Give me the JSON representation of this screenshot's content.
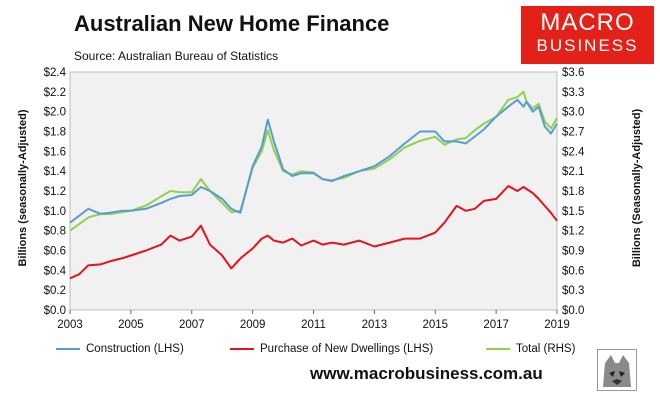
{
  "header": {
    "title": "Australian New Home Finance",
    "source": "Source: Australian Bureau of Statistics"
  },
  "logo": {
    "line1": "MACRO",
    "line2": "BUSINESS"
  },
  "footer": {
    "url": "www.macrobusiness.com.au"
  },
  "colors": {
    "construction": "#5b9bd5",
    "purchase": "#e3141c",
    "total": "#8ed34a",
    "brand": "#e32119",
    "plot_bg": "#f1f1f1"
  },
  "chart_data": {
    "type": "line",
    "ylabel": "Billions (seasonally-Adjusted)",
    "y2label": "Billions (Seasonally-Adjusted)",
    "xlim": [
      2003,
      2019
    ],
    "ylim": [
      0,
      2.4
    ],
    "y2lim": [
      0,
      3.6
    ],
    "x_ticks": [
      "2003",
      "2005",
      "2007",
      "2009",
      "2011",
      "2013",
      "2015",
      "2017",
      "2019"
    ],
    "y_ticks": [
      "$0.0",
      "$0.2",
      "$0.4",
      "$0.6",
      "$0.8",
      "$1.0",
      "$1.2",
      "$1.4",
      "$1.6",
      "$1.8",
      "$2.0",
      "$2.2",
      "$2.4"
    ],
    "y2_ticks": [
      "$0.0",
      "$0.3",
      "$0.6",
      "$0.9",
      "$1.2",
      "$1.5",
      "$1.8",
      "$2.1",
      "$2.4",
      "$2.7",
      "$3.0",
      "$3.3",
      "$3.6"
    ],
    "grid": false,
    "legend_position": "bottom",
    "series": [
      {
        "name": "Construction (LHS)",
        "axis": "left",
        "x": [
          2003.0,
          2003.3,
          2003.6,
          2004.0,
          2004.3,
          2004.7,
          2005.0,
          2005.5,
          2006.0,
          2006.3,
          2006.6,
          2007.0,
          2007.3,
          2007.6,
          2008.0,
          2008.3,
          2008.6,
          2009.0,
          2009.3,
          2009.5,
          2009.7,
          2010.0,
          2010.3,
          2010.6,
          2011.0,
          2011.3,
          2011.6,
          2012.0,
          2012.5,
          2013.0,
          2013.5,
          2014.0,
          2014.5,
          2015.0,
          2015.3,
          2015.7,
          2016.0,
          2016.3,
          2016.6,
          2017.0,
          2017.4,
          2017.7,
          2017.9,
          2018.0,
          2018.2,
          2018.4,
          2018.6,
          2018.8,
          2019.0
        ],
        "y": [
          0.88,
          0.95,
          1.02,
          0.97,
          0.98,
          1.0,
          1.0,
          1.02,
          1.08,
          1.12,
          1.15,
          1.16,
          1.24,
          1.2,
          1.12,
          1.02,
          0.98,
          1.45,
          1.65,
          1.92,
          1.7,
          1.42,
          1.35,
          1.38,
          1.38,
          1.32,
          1.3,
          1.35,
          1.4,
          1.45,
          1.55,
          1.68,
          1.8,
          1.8,
          1.7,
          1.7,
          1.68,
          1.75,
          1.82,
          1.95,
          2.05,
          2.12,
          2.05,
          2.1,
          2.0,
          2.05,
          1.85,
          1.78,
          1.88
        ]
      },
      {
        "name": "Purchase of New Dwellings (LHS)",
        "axis": "left",
        "x": [
          2003.0,
          2003.3,
          2003.6,
          2004.0,
          2004.3,
          2004.7,
          2005.0,
          2005.5,
          2006.0,
          2006.3,
          2006.6,
          2007.0,
          2007.3,
          2007.6,
          2008.0,
          2008.3,
          2008.6,
          2009.0,
          2009.3,
          2009.5,
          2009.7,
          2010.0,
          2010.3,
          2010.6,
          2011.0,
          2011.3,
          2011.6,
          2012.0,
          2012.5,
          2013.0,
          2013.5,
          2014.0,
          2014.5,
          2015.0,
          2015.3,
          2015.7,
          2016.0,
          2016.3,
          2016.6,
          2017.0,
          2017.4,
          2017.7,
          2017.9,
          2018.0,
          2018.2,
          2018.4,
          2018.6,
          2018.8,
          2019.0
        ],
        "y": [
          0.32,
          0.36,
          0.45,
          0.46,
          0.49,
          0.52,
          0.55,
          0.6,
          0.66,
          0.75,
          0.7,
          0.74,
          0.85,
          0.66,
          0.55,
          0.42,
          0.52,
          0.62,
          0.72,
          0.75,
          0.7,
          0.68,
          0.72,
          0.65,
          0.7,
          0.66,
          0.68,
          0.66,
          0.7,
          0.64,
          0.68,
          0.72,
          0.72,
          0.78,
          0.88,
          1.05,
          1.0,
          1.02,
          1.1,
          1.12,
          1.25,
          1.2,
          1.24,
          1.22,
          1.18,
          1.12,
          1.05,
          0.98,
          0.9
        ]
      },
      {
        "name": "Total (RHS)",
        "axis": "right",
        "x": [
          2003.0,
          2003.3,
          2003.6,
          2004.0,
          2004.3,
          2004.7,
          2005.0,
          2005.5,
          2006.0,
          2006.3,
          2006.6,
          2007.0,
          2007.3,
          2007.6,
          2008.0,
          2008.3,
          2008.6,
          2009.0,
          2009.3,
          2009.5,
          2009.7,
          2010.0,
          2010.3,
          2010.6,
          2011.0,
          2011.3,
          2011.6,
          2012.0,
          2012.5,
          2013.0,
          2013.5,
          2014.0,
          2014.5,
          2015.0,
          2015.3,
          2015.7,
          2016.0,
          2016.3,
          2016.6,
          2017.0,
          2017.4,
          2017.7,
          2017.9,
          2018.0,
          2018.2,
          2018.4,
          2018.6,
          2018.8,
          2019.0
        ],
        "y": [
          1.2,
          1.3,
          1.4,
          1.45,
          1.45,
          1.48,
          1.5,
          1.58,
          1.72,
          1.8,
          1.78,
          1.78,
          1.98,
          1.8,
          1.62,
          1.48,
          1.5,
          2.15,
          2.4,
          2.72,
          2.42,
          2.1,
          2.05,
          2.1,
          2.08,
          1.98,
          1.96,
          2.0,
          2.1,
          2.14,
          2.28,
          2.46,
          2.56,
          2.62,
          2.5,
          2.58,
          2.6,
          2.72,
          2.82,
          2.92,
          3.18,
          3.22,
          3.3,
          3.15,
          3.05,
          3.12,
          2.85,
          2.75,
          2.9
        ]
      }
    ]
  }
}
